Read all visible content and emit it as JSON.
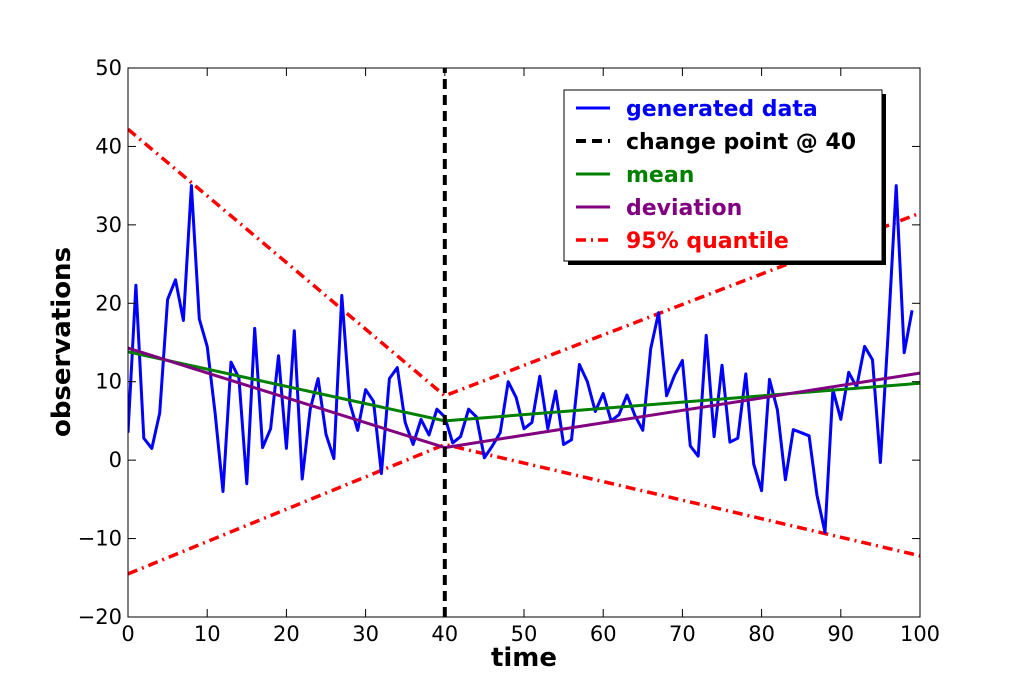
{
  "chart_data": {
    "type": "line",
    "title": "",
    "xlabel": "time",
    "ylabel": "observations",
    "xlim": [
      0,
      100
    ],
    "ylim": [
      -20,
      50
    ],
    "xticks": [
      0,
      10,
      20,
      30,
      40,
      50,
      60,
      70,
      80,
      90,
      100
    ],
    "xtick_labels": [
      "0",
      "10",
      "20",
      "30",
      "40",
      "50",
      "60",
      "70",
      "80",
      "90",
      "100"
    ],
    "yticks": [
      -20,
      -10,
      0,
      10,
      20,
      30,
      40,
      50
    ],
    "ytick_labels": [
      "−20",
      "−10",
      "0",
      "10",
      "20",
      "30",
      "40",
      "50"
    ],
    "grid": false,
    "legend_position": "top-right",
    "series": [
      {
        "name": "generated data",
        "color": "#0000ff",
        "style": "solid",
        "x": [
          0,
          1,
          2,
          3,
          4,
          5,
          6,
          7,
          8,
          9,
          10,
          11,
          12,
          13,
          14,
          15,
          16,
          17,
          18,
          19,
          20,
          21,
          22,
          23,
          24,
          25,
          26,
          27,
          28,
          29,
          30,
          31,
          32,
          33,
          34,
          35,
          36,
          37,
          38,
          39,
          40,
          41,
          42,
          43,
          44,
          45,
          46,
          47,
          48,
          49,
          50,
          51,
          52,
          53,
          54,
          55,
          56,
          57,
          58,
          59,
          60,
          61,
          62,
          63,
          64,
          65,
          66,
          67,
          68,
          69,
          70,
          71,
          72,
          73,
          74,
          75,
          76,
          77,
          78,
          79,
          80,
          81,
          82,
          83,
          84,
          85,
          86,
          87,
          88,
          89,
          90,
          91,
          92,
          93,
          94,
          95,
          96,
          97,
          98,
          99
        ],
        "y": [
          3.5,
          22.3,
          2.8,
          1.5,
          6,
          20.5,
          23,
          17.8,
          35,
          18,
          14.5,
          6,
          -4,
          12.5,
          10.5,
          -3,
          16.8,
          1.6,
          4,
          13.3,
          1.5,
          16.5,
          -2.4,
          6.5,
          10.4,
          3.3,
          0.2,
          21,
          7.3,
          3.8,
          9,
          7.5,
          -1.7,
          10.4,
          11.8,
          4.8,
          2,
          5.2,
          3.2,
          6.5,
          5.5,
          2.2,
          3,
          6.5,
          5.5,
          0.3,
          1.8,
          3.5,
          10,
          8,
          4,
          4.8,
          10.7,
          4,
          8.8,
          2,
          2.6,
          12.2,
          10,
          6.2,
          8.5,
          5,
          5.8,
          8.3,
          5.7,
          3.8,
          14.2,
          18.8,
          8.2,
          10.8,
          12.7,
          1.8,
          0.5,
          15.9,
          3,
          12.1,
          2.3,
          2.8,
          11,
          -0.5,
          -3.9,
          10.3,
          6.4,
          -2.5,
          3.9,
          3.5,
          3.1,
          -4.5,
          -9.2,
          9,
          5.2,
          11.2,
          9.3,
          14.5,
          12.8,
          -0.3,
          16.5,
          35,
          13.7,
          19.1
        ]
      },
      {
        "name": "change point @ 40",
        "color": "#000000",
        "style": "dashed",
        "x": [
          40,
          40
        ],
        "y": [
          -20,
          50
        ]
      },
      {
        "name": "mean",
        "color": "#008000",
        "style": "solid",
        "x": [
          0,
          40,
          40,
          100
        ],
        "y": [
          13.8,
          5.0,
          5.0,
          9.8
        ]
      },
      {
        "name": "deviation",
        "color": "#800080",
        "style": "solid",
        "x": [
          0,
          40,
          40,
          100
        ],
        "y": [
          14.3,
          1.6,
          1.6,
          11.1
        ]
      },
      {
        "name": "95% quantile",
        "color": "#ff0000",
        "style": "dashdot",
        "x": [
          0,
          40,
          40,
          100
        ],
        "y": [
          42.2,
          8.2,
          8.2,
          31.5
        ]
      },
      {
        "name": "95% quantile",
        "color": "#ff0000",
        "style": "dashdot",
        "x": [
          0,
          40,
          40,
          100
        ],
        "y": [
          -14.5,
          2.0,
          2.0,
          -12.2
        ]
      }
    ],
    "legend": [
      {
        "label": "generated data",
        "color": "#0000ff",
        "style": "solid"
      },
      {
        "label": "change point @ 40",
        "color": "#000000",
        "style": "dashed"
      },
      {
        "label": "mean",
        "color": "#008000",
        "style": "solid"
      },
      {
        "label": "deviation",
        "color": "#800080",
        "style": "solid"
      },
      {
        "label": "95% quantile",
        "color": "#ff0000",
        "style": "dashdot"
      }
    ]
  }
}
